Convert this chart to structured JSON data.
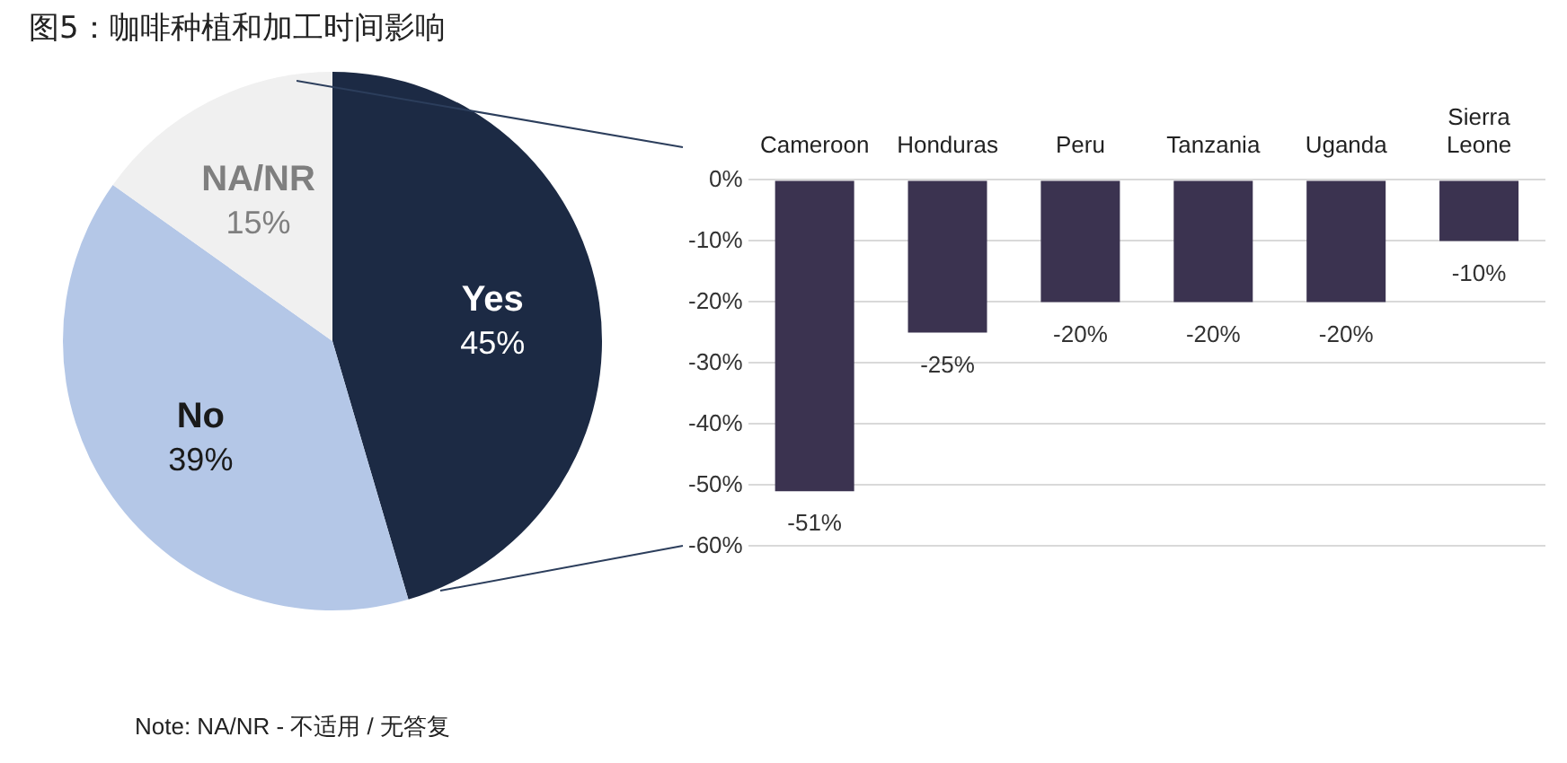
{
  "chart_data": [
    {
      "type": "pie",
      "title": "图5：咖啡种植和加工时间影响",
      "categories": [
        "Yes",
        "No",
        "NA/NR"
      ],
      "values": [
        45,
        39,
        15
      ],
      "value_labels": [
        "45%",
        "39%",
        "15%"
      ],
      "colors": [
        "#1c2a44",
        "#b4c7e7",
        "#f0f0f0"
      ],
      "legend": false
    },
    {
      "type": "bar",
      "categories": [
        "Cameroon",
        "Honduras",
        "Peru",
        "Tanzania",
        "Uganda",
        "Sierra Leone"
      ],
      "values": [
        -51,
        -25,
        -20,
        -20,
        -20,
        -10
      ],
      "value_labels": [
        "-51%",
        "-25%",
        "-20%",
        "-20%",
        "-20%",
        "-10%"
      ],
      "color": "#3b3350",
      "ylim": [
        -60,
        0
      ],
      "yticks": [
        {
          "value": 0,
          "label": "0%"
        },
        {
          "value": -10,
          "label": "-10%"
        },
        {
          "value": -20,
          "label": "-20%"
        },
        {
          "value": -30,
          "label": "-30%"
        },
        {
          "value": -40,
          "label": "-40%"
        },
        {
          "value": -50,
          "label": "-50%"
        },
        {
          "value": -60,
          "label": "-60%"
        }
      ],
      "grid": "y",
      "legend": false,
      "annotations": [
        "Note: NA/NR - 不适用 / 无答复"
      ]
    }
  ]
}
